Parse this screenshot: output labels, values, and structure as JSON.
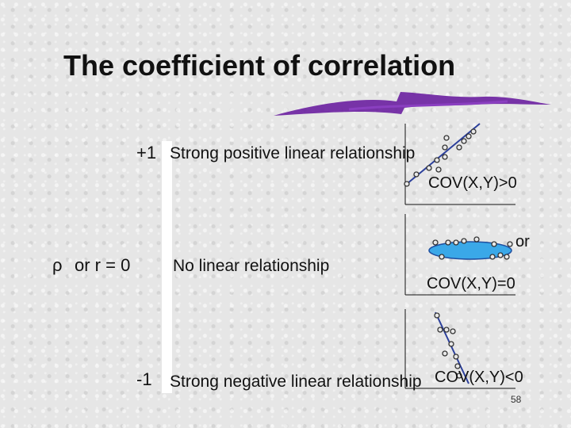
{
  "slide": {
    "title": "The coefficient of correlation",
    "page_number": "58"
  },
  "scale": {
    "plus_one": {
      "value": "+1",
      "description": "Strong positive linear relationship",
      "cov": "COV(X,Y)>0"
    },
    "zero": {
      "symbol": "ρ",
      "or_r": "or  r  =  0",
      "description": "No linear relationship",
      "or_text": "or",
      "cov": "COV(X,Y)=0"
    },
    "minus_one": {
      "value": "-1",
      "description": "Strong negative linear relationship",
      "cov": "COV(X,Y)<0"
    }
  },
  "colors": {
    "accent_stroke": "#6a1fa0",
    "regression_line": "#2b3f9b",
    "ellipse_fill": "#3aa8e8"
  }
}
